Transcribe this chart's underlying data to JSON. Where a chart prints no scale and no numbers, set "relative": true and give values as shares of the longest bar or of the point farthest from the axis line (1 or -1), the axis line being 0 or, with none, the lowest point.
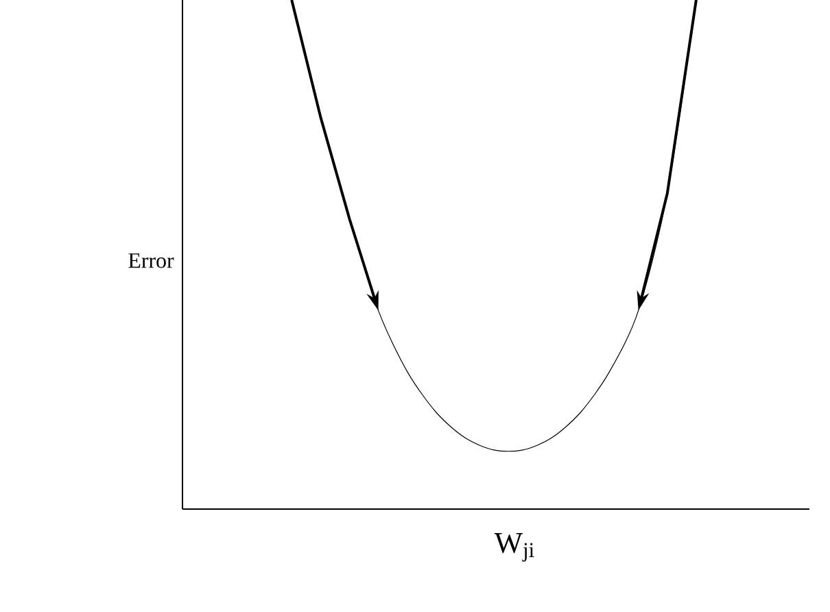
{
  "chart_data": {
    "type": "line",
    "relative": true,
    "xlabel": "W$_{ji}$",
    "ylabel": "Error",
    "categories": [
      null,
      null,
      null,
      null,
      null,
      null,
      null,
      null,
      null,
      null,
      null,
      null,
      null,
      null,
      null
    ],
    "series": [
      {
        "color": "#000000",
        "values": [
          1.0,
          0.77,
          0.57,
          0.39,
          0.27,
          0.19,
          0.14,
          0.116,
          0.116,
          0.14,
          0.19,
          0.27,
          0.39,
          0.62,
          1.0
        ]
      }
    ],
    "marker": "none",
    "line_style": "solid"
  }
}
